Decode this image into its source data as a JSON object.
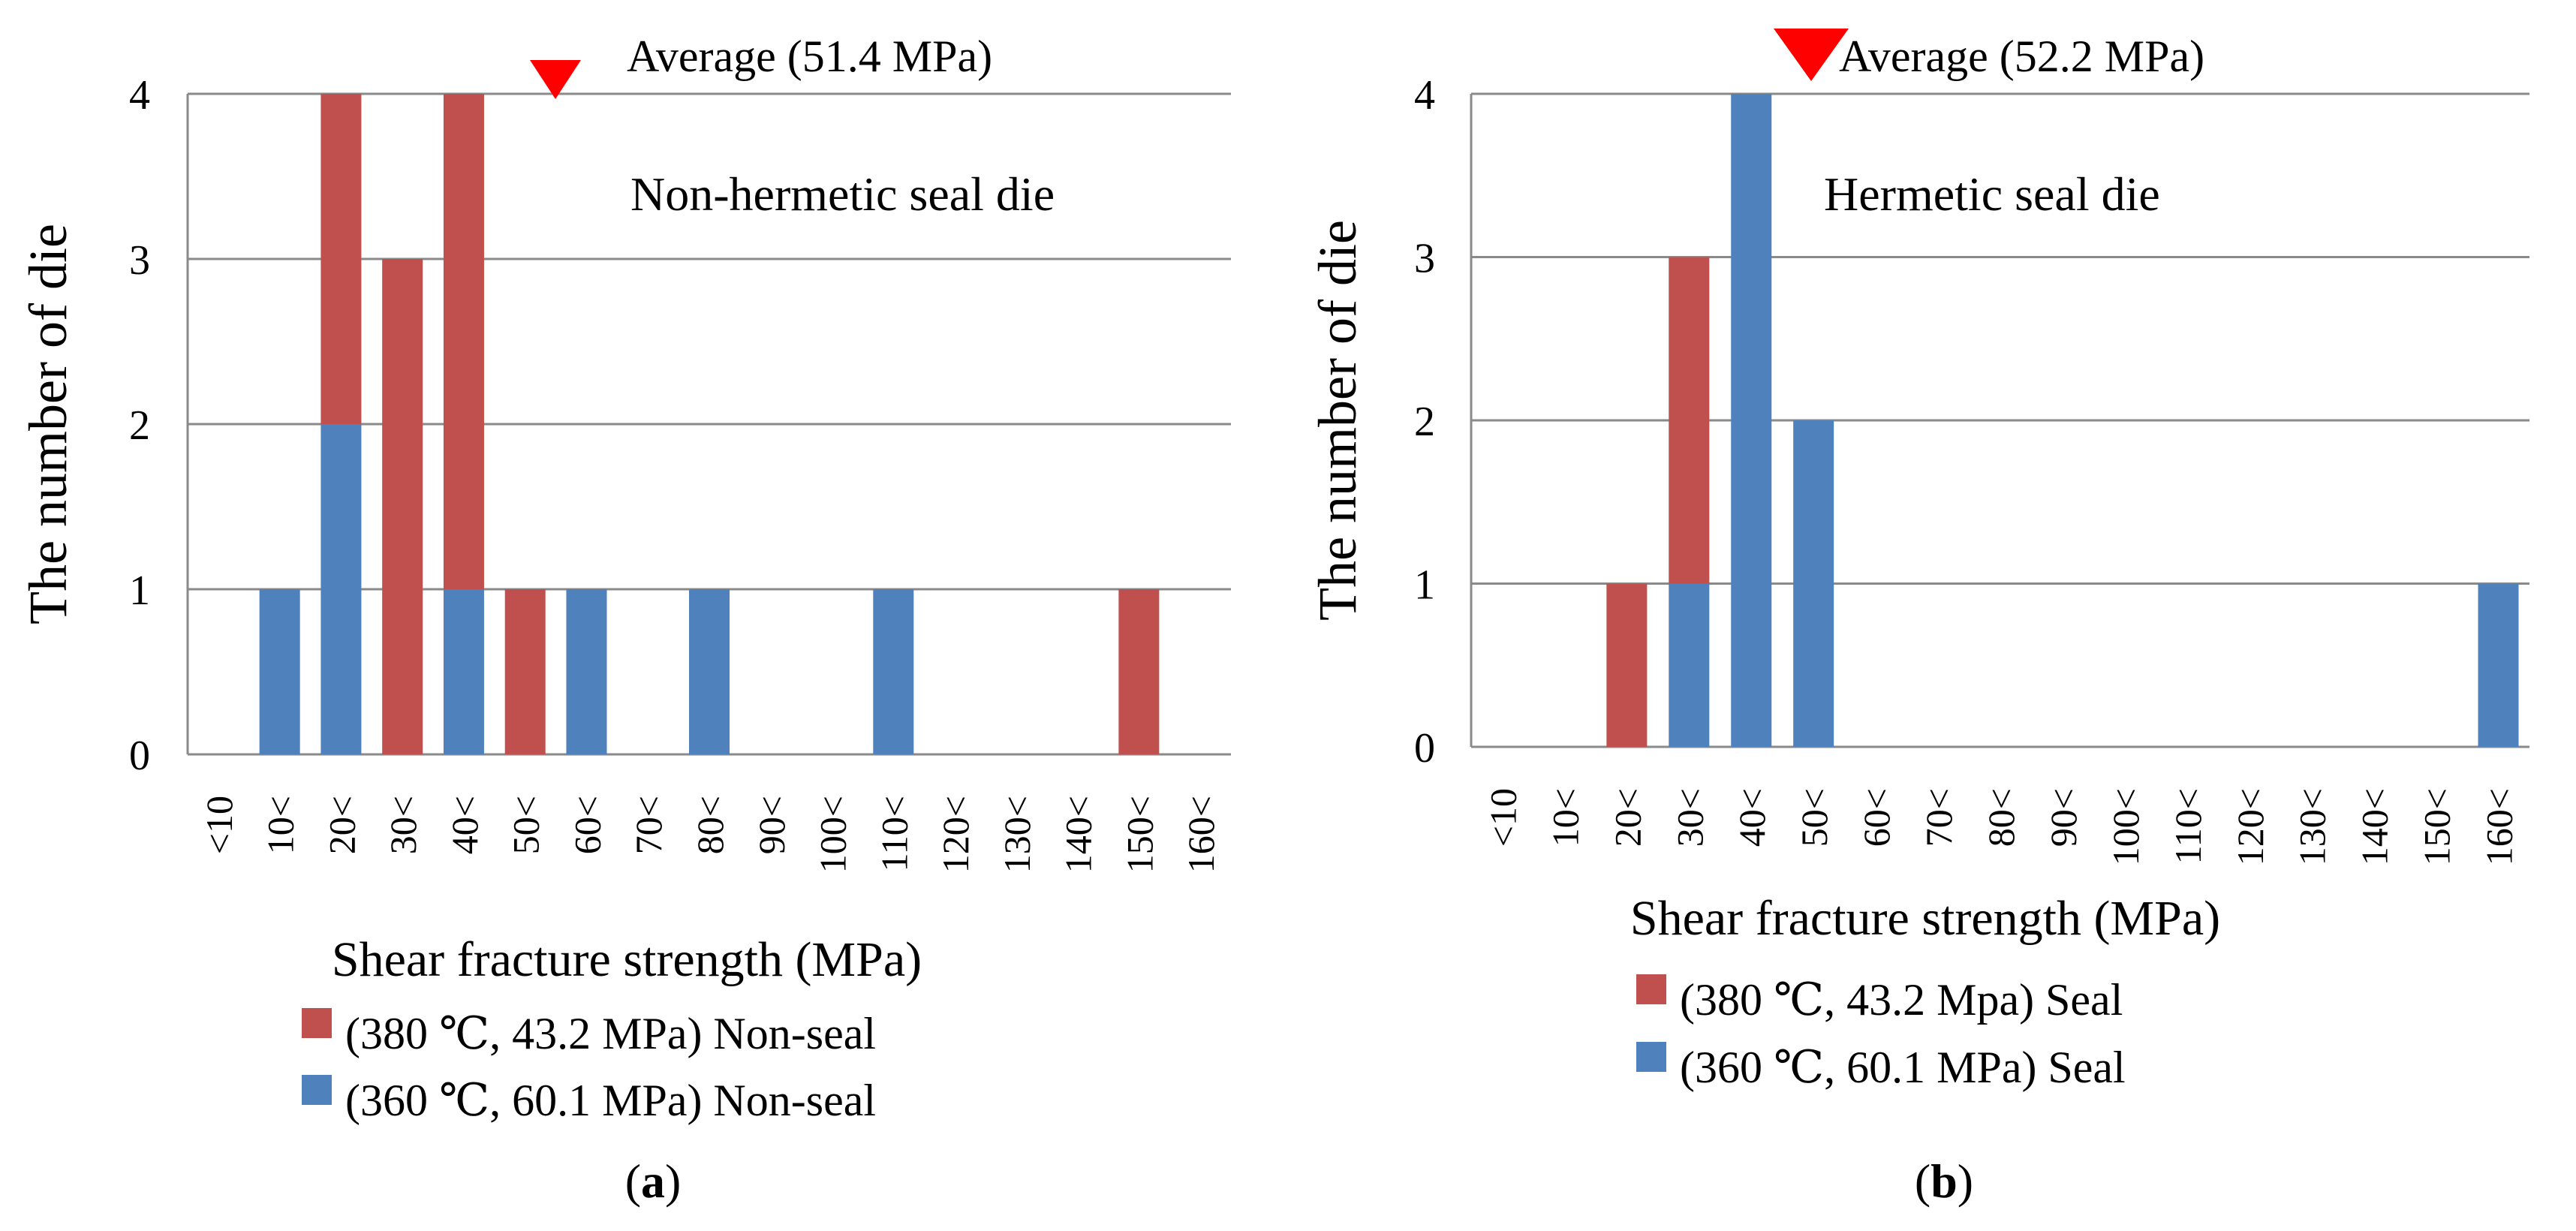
{
  "colors": {
    "seal380": "#C0504D",
    "seal360": "#4F81BD",
    "marker": "#FF0000"
  },
  "chart_data": [
    {
      "type": "bar",
      "stacked": true,
      "panel_label": "(a)",
      "panel_letter": "a",
      "title": "Non-hermetic seal die",
      "average_label": "Average (51.4 MPa)",
      "average_value": 51.4,
      "xlabel": "Shear fracture strength (MPa)",
      "ylabel": "The number of die",
      "ylim": [
        0,
        4
      ],
      "yticks": [
        "0",
        "1",
        "2",
        "3",
        "4"
      ],
      "categories": [
        "<10",
        "10<",
        "20<",
        "30<",
        "40<",
        "50<",
        "60<",
        "70<",
        "80<",
        "90<",
        "100<",
        "110<",
        "120<",
        "130<",
        "140<",
        "150<",
        "160<"
      ],
      "series": [
        {
          "name": "(360 ℃, 60.1 MPa) Non-seal",
          "color": "#4F81BD",
          "values": [
            0,
            1,
            2,
            0,
            1,
            0,
            1,
            0,
            1,
            0,
            0,
            1,
            0,
            0,
            0,
            0,
            0
          ]
        },
        {
          "name": "(380 ℃, 43.2 MPa) Non-seal",
          "color": "#C0504D",
          "values": [
            0,
            0,
            2,
            3,
            3,
            1,
            0,
            0,
            0,
            0,
            0,
            0,
            0,
            0,
            0,
            1,
            0
          ]
        }
      ],
      "legend": [
        "(380 ℃, 43.2 MPa) Non-seal",
        "(360 ℃, 60.1 MPa) Non-seal"
      ],
      "legend_position": "bottom"
    },
    {
      "type": "bar",
      "stacked": true,
      "panel_label": "(b)",
      "panel_letter": "b",
      "title": "Hermetic seal die",
      "average_label": "Average (52.2 MPa)",
      "average_value": 52.2,
      "xlabel": "Shear fracture strength (MPa)",
      "ylabel": "The number of die",
      "ylim": [
        0,
        4
      ],
      "yticks": [
        "0",
        "1",
        "2",
        "3",
        "4"
      ],
      "categories": [
        "<10",
        "10<",
        "20<",
        "30<",
        "40<",
        "50<",
        "60<",
        "70<",
        "80<",
        "90<",
        "100<",
        "110<",
        "120<",
        "130<",
        "140<",
        "150<",
        "160<"
      ],
      "series": [
        {
          "name": "(360 ℃, 60.1 MPa) Seal",
          "color": "#4F81BD",
          "values": [
            0,
            0,
            0,
            1,
            4,
            2,
            0,
            0,
            0,
            0,
            0,
            0,
            0,
            0,
            0,
            0,
            1
          ]
        },
        {
          "name": "(380 ℃, 43.2 Mpa) Seal",
          "color": "#C0504D",
          "values": [
            0,
            0,
            1,
            2,
            0,
            0,
            0,
            0,
            0,
            0,
            0,
            0,
            0,
            0,
            0,
            0,
            0
          ]
        }
      ],
      "legend": [
        "(380 ℃, 43.2 Mpa) Seal",
        "(360 ℃, 60.1 MPa) Seal"
      ],
      "legend_position": "bottom"
    }
  ]
}
